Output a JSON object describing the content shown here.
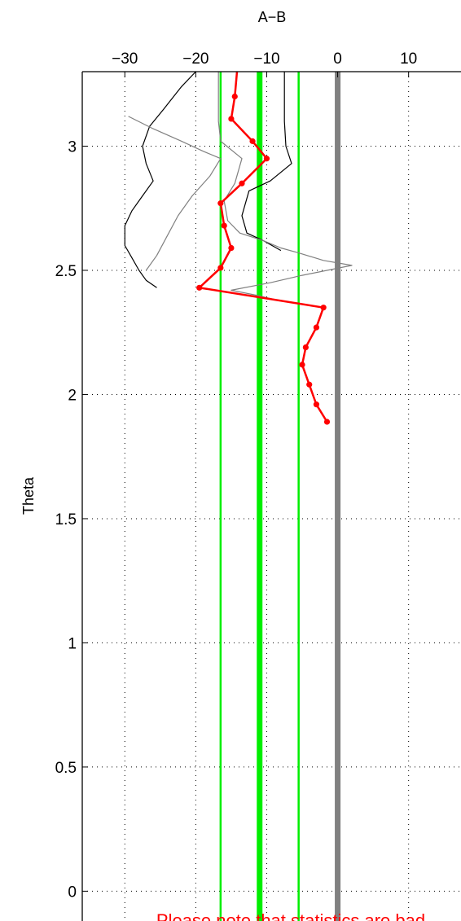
{
  "chart_data": {
    "type": "line",
    "xlabel": "A−B",
    "ylabel": "Theta",
    "xlim": [
      -36,
      17.5
    ],
    "ylim": [
      -0.12,
      3.3
    ],
    "x_ticks": [
      -30,
      -20,
      -10,
      0,
      10
    ],
    "x_tick_labels": [
      "−30",
      "−20",
      "−10",
      "0",
      "10"
    ],
    "y_ticks": [
      0,
      0.5,
      1,
      1.5,
      2,
      2.5,
      3
    ],
    "y_tick_labels": [
      "0",
      "0.5",
      "1",
      "1.5",
      "2",
      "2.5",
      "3"
    ],
    "x_axis_position": "top",
    "grid": true,
    "reference_lines": [
      {
        "x": 0,
        "color": "#808080",
        "style": "thick"
      },
      {
        "x": -11,
        "color": "#00ee00",
        "style": "thick"
      },
      {
        "x": -16.5,
        "color": "#00ee00",
        "style": "thin"
      },
      {
        "x": -5.5,
        "color": "#00ee00",
        "style": "thin"
      }
    ],
    "series": [
      {
        "color": "#000000",
        "points": [
          [
            -7.5,
            3.3
          ],
          [
            -7.5,
            3.2
          ],
          [
            -7.5,
            3.1
          ],
          [
            -7.3,
            3.0
          ],
          [
            -6.5,
            2.93
          ],
          [
            -9.5,
            2.86
          ],
          [
            -12.5,
            2.82
          ],
          [
            -13.5,
            2.72
          ],
          [
            -12.8,
            2.65
          ],
          [
            -10.5,
            2.62
          ],
          [
            -8,
            2.58
          ]
        ]
      },
      {
        "color": "#000000",
        "points": [
          [
            -20,
            3.3
          ],
          [
            -22,
            3.24
          ],
          [
            -24.5,
            3.15
          ],
          [
            -26.5,
            3.08
          ],
          [
            -27.5,
            3.0
          ],
          [
            -27,
            2.93
          ],
          [
            -26,
            2.86
          ],
          [
            -27.5,
            2.8
          ],
          [
            -29,
            2.74
          ],
          [
            -30,
            2.68
          ],
          [
            -30,
            2.6
          ],
          [
            -29,
            2.55
          ],
          [
            -28,
            2.5
          ],
          [
            -27,
            2.46
          ],
          [
            -25.5,
            2.43
          ]
        ]
      },
      {
        "color": "#808080",
        "points": [
          [
            -16.8,
            3.3
          ],
          [
            -16.8,
            3.2
          ],
          [
            -16.8,
            3.1
          ],
          [
            -16.5,
            3.02
          ],
          [
            -13.5,
            2.95
          ],
          [
            -14.5,
            2.85
          ],
          [
            -16,
            2.78
          ],
          [
            -15.5,
            2.7
          ],
          [
            -13.8,
            2.65
          ],
          [
            -10.5,
            2.62
          ],
          [
            -8,
            2.59
          ],
          [
            -5.5,
            2.57
          ],
          [
            -2,
            2.54
          ],
          [
            2,
            2.52
          ],
          [
            -5,
            2.48
          ],
          [
            -9.5,
            2.45
          ],
          [
            -15,
            2.42
          ],
          [
            -11.5,
            2.4
          ],
          [
            -8.5,
            2.38
          ]
        ]
      },
      {
        "color": "#808080",
        "points": [
          [
            -29.5,
            3.12
          ],
          [
            -26,
            3.07
          ],
          [
            -22,
            3.02
          ],
          [
            -19,
            2.98
          ],
          [
            -16.5,
            2.95
          ],
          [
            -18,
            2.88
          ],
          [
            -20.5,
            2.8
          ],
          [
            -22.5,
            2.72
          ],
          [
            -24,
            2.64
          ],
          [
            -25.5,
            2.56
          ],
          [
            -27,
            2.5
          ]
        ]
      },
      {
        "color": "#ff0000",
        "markers": true,
        "points": [
          [
            -14,
            3.36
          ],
          [
            -14.5,
            3.2
          ],
          [
            -15,
            3.11
          ],
          [
            -12,
            3.02
          ],
          [
            -10,
            2.95
          ],
          [
            -13.5,
            2.85
          ],
          [
            -16.5,
            2.77
          ],
          [
            -16,
            2.68
          ],
          [
            -15,
            2.59
          ],
          [
            -16.5,
            2.51
          ],
          [
            -19.5,
            2.43
          ],
          [
            -2,
            2.35
          ],
          [
            -3,
            2.27
          ],
          [
            -4.5,
            2.19
          ],
          [
            -5,
            2.12
          ],
          [
            -4,
            2.04
          ],
          [
            -3,
            1.96
          ],
          [
            -1.5,
            1.89
          ]
        ]
      }
    ],
    "annotation": {
      "text": "Please note that statistics are bad",
      "color": "#ff0000"
    }
  }
}
